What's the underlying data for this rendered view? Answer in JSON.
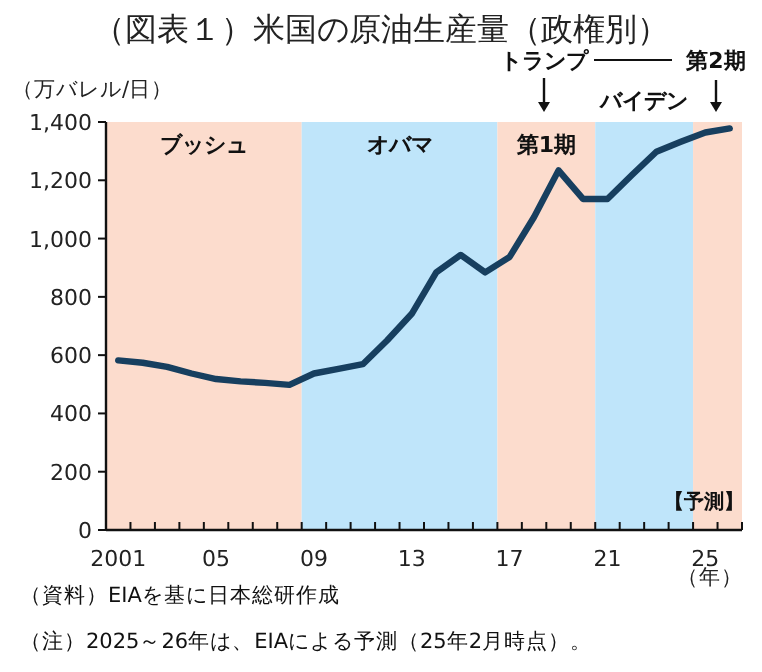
{
  "chart_data": {
    "type": "line",
    "title": "（図表１）米国の原油生産量（政権別）",
    "ylabel": "（万バレル/日）",
    "xlabel": "（年）",
    "x": [
      2001,
      2002,
      2003,
      2004,
      2005,
      2006,
      2007,
      2008,
      2009,
      2010,
      2011,
      2012,
      2013,
      2014,
      2015,
      2016,
      2017,
      2018,
      2019,
      2020,
      2021,
      2022,
      2023,
      2024,
      2025,
      2026
    ],
    "series": [
      {
        "color": "#173f5f",
        "values": [
          582,
          574,
          560,
          537,
          518,
          510,
          505,
          498,
          537,
          553,
          569,
          651,
          742,
          884,
          944,
          884,
          937,
          1074,
          1234,
          1136,
          1136,
          1218,
          1298,
          1332,
          1364,
          1378
        ]
      }
    ],
    "xlim": [
      2000.5,
      2026.5
    ],
    "xticks": [
      {
        "value": 2001,
        "label": "2001"
      },
      {
        "value": 2005,
        "label": "05"
      },
      {
        "value": 2009,
        "label": "09"
      },
      {
        "value": 2013,
        "label": "13"
      },
      {
        "value": 2017,
        "label": "17"
      },
      {
        "value": 2021,
        "label": "21"
      },
      {
        "value": 2025,
        "label": "25"
      },
      {
        "value": 2000.5,
        "label": null
      },
      {
        "value": 2001.5,
        "label": null
      },
      {
        "value": 2002.5,
        "label": null
      },
      {
        "value": 2003.5,
        "label": null
      },
      {
        "value": 2004.5,
        "label": null
      },
      {
        "value": 2005.5,
        "label": null
      },
      {
        "value": 2006.5,
        "label": null
      },
      {
        "value": 2007.5,
        "label": null
      },
      {
        "value": 2008.5,
        "label": null
      },
      {
        "value": 2009.5,
        "label": null
      },
      {
        "value": 2010.5,
        "label": null
      },
      {
        "value": 2011.5,
        "label": null
      },
      {
        "value": 2012.5,
        "label": null
      },
      {
        "value": 2013.5,
        "label": null
      },
      {
        "value": 2014.5,
        "label": null
      },
      {
        "value": 2015.5,
        "label": null
      },
      {
        "value": 2016.5,
        "label": null
      },
      {
        "value": 2017.5,
        "label": null
      },
      {
        "value": 2018.5,
        "label": null
      },
      {
        "value": 2019.5,
        "label": null
      },
      {
        "value": 2020.5,
        "label": null
      },
      {
        "value": 2021.5,
        "label": null
      },
      {
        "value": 2022.5,
        "label": null
      },
      {
        "value": 2023.5,
        "label": null
      },
      {
        "value": 2024.5,
        "label": null
      },
      {
        "value": 2025.5,
        "label": null
      },
      {
        "value": 2026.5,
        "label": null
      }
    ],
    "ylim": [
      0,
      1400
    ],
    "yticks": [
      0,
      {
        "value": 200,
        "label": "200"
      },
      {
        "value": 400,
        "label": "400"
      },
      {
        "value": 600,
        "label": "600"
      },
      {
        "value": 800,
        "label": "800"
      },
      {
        "value": 1000,
        "label": "1,000"
      },
      {
        "value": 1200,
        "label": "1,200"
      },
      {
        "value": 1400,
        "label": "1,400"
      }
    ],
    "bands": [
      {
        "axis": "x",
        "from": 2000.5,
        "to": 2008.5,
        "label": "ブッシュ",
        "color": "#fcdccd"
      },
      {
        "axis": "x",
        "from": 2008.5,
        "to": 2016.5,
        "label": "オバマ",
        "color": "#bfe5fa"
      },
      {
        "axis": "x",
        "from": 2016.5,
        "to": 2020.5,
        "label": "第1期",
        "color": "#fcdccd"
      },
      {
        "axis": "x",
        "from": 2020.5,
        "to": 2024.5,
        "label": "バイデン",
        "color": "#bfe5fa"
      },
      {
        "axis": "x",
        "from": 2024.5,
        "to": 2026.5,
        "label": "第2期",
        "color": "#fcdccd"
      }
    ],
    "annotations": [
      "トランプ",
      "【予測】",
      "（資料）EIAを基に日本総研作成",
      "（注）2025～26年は、EIAによる予測（25年2月時点）。"
    ],
    "line_style": "solid",
    "marker": "none",
    "grid": false
  }
}
